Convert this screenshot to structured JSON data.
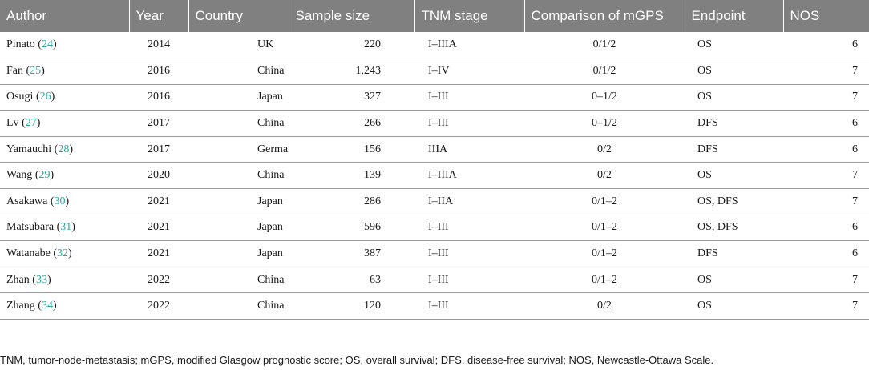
{
  "table": {
    "headers": [
      "Author",
      "Year",
      "Country",
      "Sample size",
      "TNM stage",
      "Comparison of mGPS",
      "Endpoint",
      "NOS"
    ],
    "rows": [
      {
        "author": "Pinato",
        "ref": "24",
        "year": "2014",
        "country": "UK",
        "sample_size": "220",
        "tnm_stage": "I–IIIA",
        "mgps": "0/1/2",
        "endpoint": "OS",
        "nos": "6"
      },
      {
        "author": "Fan",
        "ref": "25",
        "year": "2016",
        "country": "China",
        "sample_size": "1,243",
        "tnm_stage": "I–IV",
        "mgps": "0/1/2",
        "endpoint": "OS",
        "nos": "7"
      },
      {
        "author": "Osugi",
        "ref": "26",
        "year": "2016",
        "country": "Japan",
        "sample_size": "327",
        "tnm_stage": "I–III",
        "mgps": "0–1/2",
        "endpoint": "OS",
        "nos": "7"
      },
      {
        "author": "Lv",
        "ref": "27",
        "year": "2017",
        "country": "China",
        "sample_size": "266",
        "tnm_stage": "I–III",
        "mgps": "0–1/2",
        "endpoint": "DFS",
        "nos": "6"
      },
      {
        "author": "Yamauchi",
        "ref": "28",
        "year": "2017",
        "country": "Germany",
        "sample_size": "156",
        "tnm_stage": "IIIA",
        "mgps": "0/2",
        "endpoint": "DFS",
        "nos": "6"
      },
      {
        "author": "Wang",
        "ref": "29",
        "year": "2020",
        "country": "China",
        "sample_size": "139",
        "tnm_stage": "I–IIIA",
        "mgps": "0/2",
        "endpoint": "OS",
        "nos": "7"
      },
      {
        "author": "Asakawa",
        "ref": "30",
        "year": "2021",
        "country": "Japan",
        "sample_size": "286",
        "tnm_stage": "I–IIA",
        "mgps": "0/1–2",
        "endpoint": "OS, DFS",
        "nos": "7"
      },
      {
        "author": "Matsubara",
        "ref": "31",
        "year": "2021",
        "country": "Japan",
        "sample_size": "596",
        "tnm_stage": "I–III",
        "mgps": "0/1–2",
        "endpoint": "OS, DFS",
        "nos": "6"
      },
      {
        "author": "Watanabe",
        "ref": "32",
        "year": "2021",
        "country": "Japan",
        "sample_size": "387",
        "tnm_stage": "I–III",
        "mgps": "0/1–2",
        "endpoint": "DFS",
        "nos": "6"
      },
      {
        "author": "Zhan",
        "ref": "33",
        "year": "2022",
        "country": "China",
        "sample_size": "63",
        "tnm_stage": "I–III",
        "mgps": "0/1–2",
        "endpoint": "OS",
        "nos": "7"
      },
      {
        "author": "Zhang",
        "ref": "34",
        "year": "2022",
        "country": "China",
        "sample_size": "120",
        "tnm_stage": "I–III",
        "mgps": "0/2",
        "endpoint": "OS",
        "nos": "7"
      }
    ]
  },
  "footnote": "TNM, tumor-node-metastasis; mGPS, modified Glasgow prognostic score; OS, overall survival; DFS, disease-free survival; NOS, Newcastle-Ottawa Scale.",
  "colors": {
    "header_bg": "#808080",
    "header_text": "#ffffff",
    "ref_link": "#2aa8a0",
    "row_rule": "#9a9a9a"
  }
}
